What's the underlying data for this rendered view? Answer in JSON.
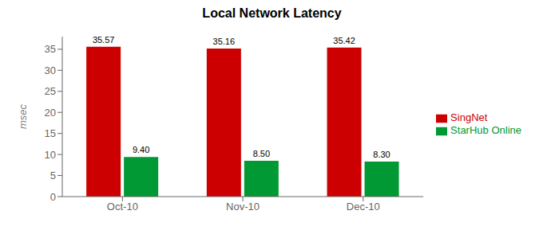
{
  "chart_data": {
    "type": "bar",
    "title": "Local Network Latency",
    "y_label": "msec",
    "categories": [
      "Oct-10",
      "Nov-10",
      "Dec-10"
    ],
    "series": [
      {
        "name": "SingNet",
        "color": "#CC0000",
        "values": [
          35.57,
          35.16,
          35.42
        ]
      },
      {
        "name": "StarHub Online",
        "color": "#009933",
        "values": [
          9.4,
          8.5,
          8.3
        ],
        "value_labels": [
          "9.40",
          "8.50",
          "8.30"
        ]
      }
    ],
    "ylim": [
      0,
      38
    ],
    "yticks": [
      0,
      5,
      10,
      15,
      20,
      25,
      30,
      35
    ],
    "grid": false,
    "legend": "right",
    "data_labels": true
  }
}
